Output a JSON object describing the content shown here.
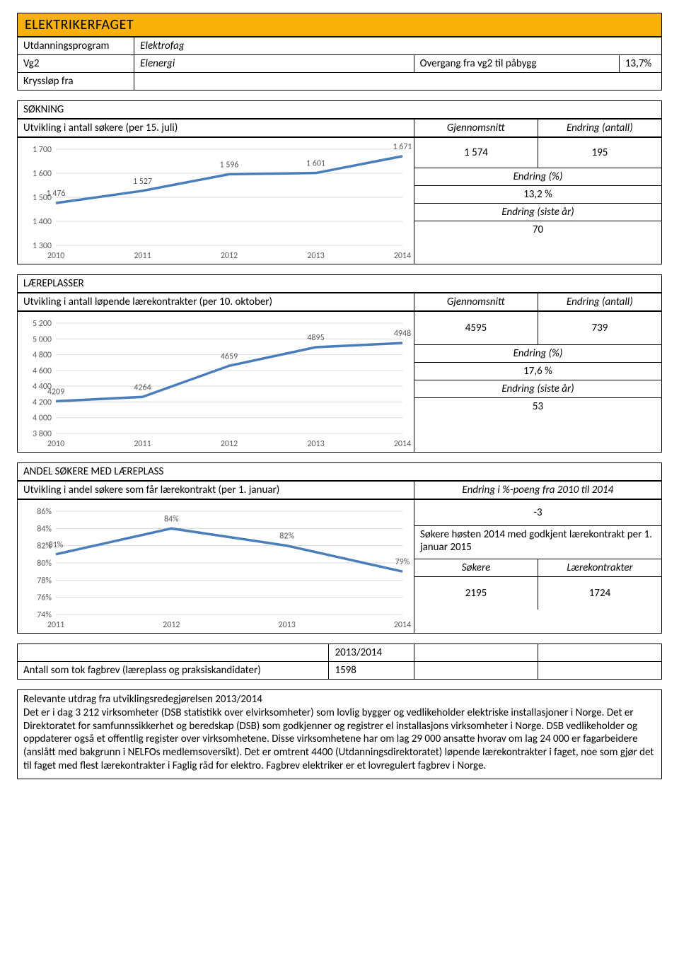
{
  "header": {
    "title": "ELEKTRIKERFAGET"
  },
  "info": {
    "utdanningsprogram_label": "Utdanningsprogram",
    "utdanningsprogram_value": "Elektrofag",
    "vg2_label": "Vg2",
    "vg2_value": "Elenergi",
    "overgang_label": "Overgang fra vg2 til påbygg",
    "overgang_value": "13,7%",
    "krysslop_label": "Kryssløp fra"
  },
  "sokning": {
    "title": "SØKNING",
    "subtitle": "Utvikling i antall søkere (per 15. juli)",
    "gj_label": "Gjennomsnitt",
    "ea_label": "Endring (antall)",
    "gj_val": "1 574",
    "ea_val": "195",
    "epct_label": "Endring (%)",
    "epct_val": "13,2 %",
    "esy_label": "Endring (siste år)",
    "esy_val": "70",
    "chart": {
      "type": "line",
      "x": [
        "2010",
        "2011",
        "2012",
        "2013",
        "2014"
      ],
      "y": [
        1476,
        1527,
        1596,
        1601,
        1671
      ],
      "labels": [
        "1 476",
        "1 527",
        "1 596",
        "1 601",
        "1 671"
      ],
      "ymin": 1300,
      "ymax": 1700,
      "ystep": 100,
      "line_color": "#4a7ebb",
      "grid_color": "#d9d9d9",
      "bg": "#ffffff",
      "text_color": "#595959",
      "fontsize": 12
    }
  },
  "lareplasser": {
    "title": "LÆREPLASSER",
    "subtitle": "Utvikling i antall løpende lærekontrakter (per 10. oktober)",
    "gj_label": "Gjennomsnitt",
    "ea_label": "Endring (antall)",
    "gj_val": "4595",
    "ea_val": "739",
    "epct_label": "Endring (%)",
    "epct_val": "17,6 %",
    "esy_label": "Endring (siste år)",
    "esy_val": "53",
    "chart": {
      "type": "line",
      "x": [
        "2010",
        "2011",
        "2012",
        "2013",
        "2014"
      ],
      "y": [
        4209,
        4264,
        4659,
        4895,
        4948
      ],
      "labels": [
        "4209",
        "4264",
        "4659",
        "4895",
        "4948"
      ],
      "ymin": 3800,
      "ymax": 5200,
      "ystep": 200,
      "line_color": "#4a7ebb",
      "grid_color": "#d9d9d9",
      "bg": "#ffffff",
      "text_color": "#595959",
      "fontsize": 12
    }
  },
  "andel": {
    "title": "ANDEL SØKERE MED LÆREPLASS",
    "subtitle": "Utvikling i andel søkere som får lærekontrakt (per 1. januar)",
    "right_header": "Endring i %-poeng fra 2010 til 2014",
    "diff_val": "-3",
    "sok_label": "Søkere høsten 2014 med godkjent lærekontrakt per 1. januar 2015",
    "sokere_label": "Søkere",
    "lk_label": "Lærekontrakter",
    "sokere_val": "2195",
    "lk_val": "1724",
    "chart": {
      "type": "line",
      "x": [
        "2011",
        "2012",
        "2013",
        "2014"
      ],
      "y": [
        81,
        84,
        82,
        79
      ],
      "labels": [
        "81%",
        "84%",
        "82%",
        "79%"
      ],
      "ymin": 74,
      "ymax": 86,
      "ystep": 2,
      "ysuffix": "%",
      "line_color": "#4a7ebb",
      "grid_color": "#d9d9d9",
      "bg": "#ffffff",
      "text_color": "#595959",
      "fontsize": 12
    }
  },
  "fagbrev": {
    "row_label": "Antall som tok fagbrev (læreplass og praksiskandidater)",
    "year_label": "2013/2014",
    "value": "1598"
  },
  "utdrag": {
    "heading": "Relevante utdrag fra utviklingsredegjørelsen 2013/2014",
    "body": "Det er i dag 3 212 virksomheter (DSB statistikk over elvirksomheter) som lovlig bygger og vedlikeholder elektriske installasjoner i Norge. Det er Direktoratet for samfunnssikkerhet og beredskap (DSB) som godkjenner og registrer el installasjons virksomheter i Norge. DSB vedlikeholder og oppdaterer også et offentlig register over virksomhetene. Disse virksomhetene har om lag 29 000 ansatte hvorav om lag 24 000 er fagarbeidere (anslått med bakgrunn i NELFOs medlemsoversikt). Det er omtrent 4400 (Utdanningsdirektoratet) løpende lærekontrakter i faget, noe som gjør det til faget med flest lærekontrakter i Faglig råd for elektro. Fagbrev elektriker er et lovregulert fagbrev i Norge."
  }
}
